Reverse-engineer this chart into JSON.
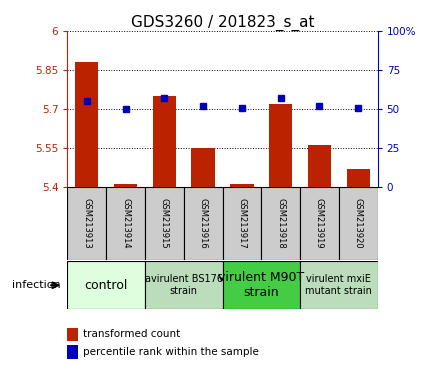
{
  "title": "GDS3260 / 201823_s_at",
  "samples": [
    "GSM213913",
    "GSM213914",
    "GSM213915",
    "GSM213916",
    "GSM213917",
    "GSM213918",
    "GSM213919",
    "GSM213920"
  ],
  "transformed_count": [
    5.88,
    5.41,
    5.75,
    5.55,
    5.41,
    5.72,
    5.56,
    5.47
  ],
  "percentile_rank": [
    55,
    50,
    57,
    52,
    51,
    57,
    52,
    51
  ],
  "ylim_left": [
    5.4,
    6.0
  ],
  "ylim_right": [
    0,
    100
  ],
  "yticks_left": [
    5.4,
    5.55,
    5.7,
    5.85,
    6.0
  ],
  "yticks_right": [
    0,
    25,
    50,
    75,
    100
  ],
  "ytick_labels_left": [
    "5.4",
    "5.55",
    "5.7",
    "5.85",
    "6"
  ],
  "ytick_labels_right": [
    "0",
    "25",
    "50",
    "75",
    "100%"
  ],
  "bar_color": "#bb2200",
  "dot_color": "#0000bb",
  "groups": [
    {
      "label": "control",
      "start": 0,
      "end": 2,
      "color": "#ddffdd",
      "fontsize": 9
    },
    {
      "label": "avirulent BS176\nstrain",
      "start": 2,
      "end": 4,
      "color": "#bbddbb",
      "fontsize": 7
    },
    {
      "label": "virulent M90T\nstrain",
      "start": 4,
      "end": 6,
      "color": "#44cc44",
      "fontsize": 9
    },
    {
      "label": "virulent mxiE\nmutant strain",
      "start": 6,
      "end": 8,
      "color": "#bbddbb",
      "fontsize": 7
    }
  ],
  "sample_box_color": "#cccccc",
  "infection_label": "infection",
  "legend_bar_label": "transformed count",
  "legend_dot_label": "percentile rank within the sample",
  "title_fontsize": 11,
  "tick_fontsize": 7.5,
  "label_fontsize": 8
}
